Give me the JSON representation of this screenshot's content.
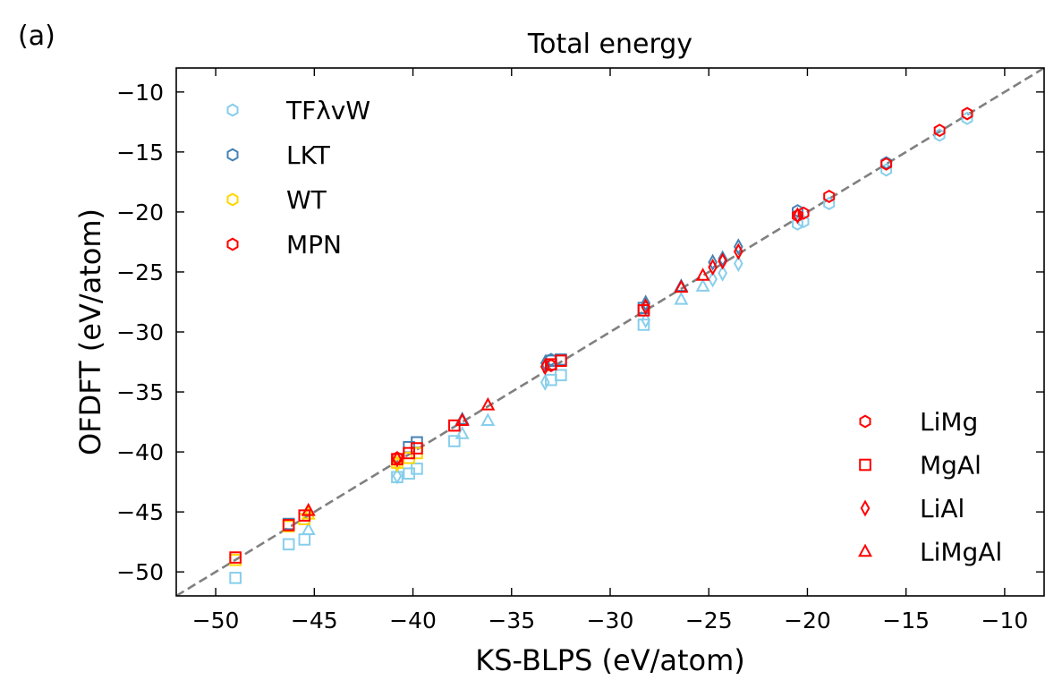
{
  "panel_label": "(a)",
  "chart_data": {
    "type": "scatter",
    "title": "Total energy",
    "xlabel": "KS-BLPS (eV/atom)",
    "ylabel": "OFDFT (eV/atom)",
    "xlim": [
      -52,
      -8
    ],
    "ylim": [
      -52,
      -8
    ],
    "xticks": [
      -50,
      -45,
      -40,
      -35,
      -30,
      -25,
      -20,
      -15,
      -10
    ],
    "yticks": [
      -50,
      -45,
      -40,
      -35,
      -30,
      -25,
      -20,
      -15,
      -10
    ],
    "tick_labels_x": [
      "−50",
      "−45",
      "−40",
      "−35",
      "−30",
      "−25",
      "−20",
      "−15",
      "−10"
    ],
    "tick_labels_y": [
      "−50",
      "−45",
      "−40",
      "−35",
      "−30",
      "−25",
      "−20",
      "−15",
      "−10"
    ],
    "reference_line": {
      "style": "dashed",
      "color": "#808080",
      "slope": 1,
      "intercept": 0
    },
    "legend_functionals": {
      "placement": "top-left",
      "entries": [
        {
          "label": "TFλvW",
          "color": "#87CEEB"
        },
        {
          "label": "LKT",
          "color": "#4682B4"
        },
        {
          "label": "WT",
          "color": "#FFD700"
        },
        {
          "label": "MPN",
          "color": "#FF0000"
        }
      ]
    },
    "legend_systems": {
      "placement": "bottom-right",
      "color": "#FF0000",
      "entries": [
        {
          "label": "LiMg",
          "marker": "hexagon"
        },
        {
          "label": "MgAl",
          "marker": "square"
        },
        {
          "label": "LiAl",
          "marker": "diamond"
        },
        {
          "label": "LiMgAl",
          "marker": "triangle"
        }
      ]
    },
    "series": [
      {
        "name": "TFλvW",
        "color": "#87CEEB",
        "points": [
          {
            "x": -11.9,
            "y": -12.2,
            "m": "hexagon"
          },
          {
            "x": -13.3,
            "y": -13.6,
            "m": "hexagon"
          },
          {
            "x": -16.0,
            "y": -16.5,
            "m": "hexagon"
          },
          {
            "x": -18.9,
            "y": -19.3,
            "m": "hexagon"
          },
          {
            "x": -20.2,
            "y": -20.8,
            "m": "hexagon"
          },
          {
            "x": -20.5,
            "y": -21.0,
            "m": "hexagon"
          },
          {
            "x": -49.0,
            "y": -50.5,
            "m": "square"
          },
          {
            "x": -46.3,
            "y": -47.7,
            "m": "square"
          },
          {
            "x": -45.5,
            "y": -47.3,
            "m": "square"
          },
          {
            "x": -40.8,
            "y": -42.1,
            "m": "square"
          },
          {
            "x": -40.2,
            "y": -41.8,
            "m": "square"
          },
          {
            "x": -39.8,
            "y": -41.4,
            "m": "square"
          },
          {
            "x": -37.9,
            "y": -39.1,
            "m": "square"
          },
          {
            "x": -33.0,
            "y": -34.0,
            "m": "square"
          },
          {
            "x": -32.5,
            "y": -33.6,
            "m": "square"
          },
          {
            "x": -28.3,
            "y": -29.4,
            "m": "square"
          },
          {
            "x": -40.8,
            "y": -42.0,
            "m": "diamond"
          },
          {
            "x": -33.3,
            "y": -34.2,
            "m": "diamond"
          },
          {
            "x": -28.2,
            "y": -29.0,
            "m": "diamond"
          },
          {
            "x": -24.8,
            "y": -25.6,
            "m": "diamond"
          },
          {
            "x": -24.3,
            "y": -25.1,
            "m": "diamond"
          },
          {
            "x": -23.5,
            "y": -24.3,
            "m": "diamond"
          },
          {
            "x": -45.3,
            "y": -46.5,
            "m": "triangle"
          },
          {
            "x": -37.5,
            "y": -38.5,
            "m": "triangle"
          },
          {
            "x": -36.2,
            "y": -37.4,
            "m": "triangle"
          },
          {
            "x": -26.4,
            "y": -27.3,
            "m": "triangle"
          },
          {
            "x": -25.3,
            "y": -26.2,
            "m": "triangle"
          }
        ]
      },
      {
        "name": "LKT",
        "color": "#4682B4",
        "points": [
          {
            "x": -11.9,
            "y": -11.8,
            "m": "hexagon"
          },
          {
            "x": -16.0,
            "y": -15.9,
            "m": "hexagon"
          },
          {
            "x": -20.5,
            "y": -19.9,
            "m": "hexagon"
          },
          {
            "x": -33.0,
            "y": -32.3,
            "m": "hexagon"
          },
          {
            "x": -46.3,
            "y": -46.0,
            "m": "square"
          },
          {
            "x": -40.2,
            "y": -39.6,
            "m": "square"
          },
          {
            "x": -39.8,
            "y": -39.2,
            "m": "square"
          },
          {
            "x": -33.0,
            "y": -32.4,
            "m": "square"
          },
          {
            "x": -32.5,
            "y": -32.3,
            "m": "square"
          },
          {
            "x": -28.3,
            "y": -28.0,
            "m": "square"
          },
          {
            "x": -33.3,
            "y": -32.6,
            "m": "diamond"
          },
          {
            "x": -28.2,
            "y": -27.6,
            "m": "diamond"
          },
          {
            "x": -24.8,
            "y": -24.2,
            "m": "diamond"
          },
          {
            "x": -24.3,
            "y": -23.9,
            "m": "diamond"
          },
          {
            "x": -23.5,
            "y": -22.9,
            "m": "diamond"
          },
          {
            "x": -37.5,
            "y": -37.3,
            "m": "triangle"
          },
          {
            "x": -26.4,
            "y": -26.2,
            "m": "triangle"
          }
        ]
      },
      {
        "name": "WT",
        "color": "#FFD700",
        "points": [
          {
            "x": -49.0,
            "y": -49.0,
            "m": "square"
          },
          {
            "x": -46.3,
            "y": -46.2,
            "m": "square"
          },
          {
            "x": -45.5,
            "y": -45.6,
            "m": "square"
          },
          {
            "x": -40.8,
            "y": -40.9,
            "m": "square"
          },
          {
            "x": -40.2,
            "y": -40.5,
            "m": "square"
          },
          {
            "x": -39.8,
            "y": -40.1,
            "m": "square"
          },
          {
            "x": -40.8,
            "y": -41.0,
            "m": "diamond"
          },
          {
            "x": -45.3,
            "y": -45.2,
            "m": "triangle"
          }
        ]
      },
      {
        "name": "MPN",
        "color": "#FF0000",
        "points": [
          {
            "x": -11.9,
            "y": -11.8,
            "m": "hexagon"
          },
          {
            "x": -13.3,
            "y": -13.2,
            "m": "hexagon"
          },
          {
            "x": -16.0,
            "y": -16.0,
            "m": "hexagon"
          },
          {
            "x": -18.9,
            "y": -18.7,
            "m": "hexagon"
          },
          {
            "x": -20.2,
            "y": -20.1,
            "m": "hexagon"
          },
          {
            "x": -20.5,
            "y": -20.3,
            "m": "hexagon"
          },
          {
            "x": -33.0,
            "y": -32.8,
            "m": "hexagon"
          },
          {
            "x": -40.8,
            "y": -40.5,
            "m": "hexagon"
          },
          {
            "x": -49.0,
            "y": -48.8,
            "m": "square"
          },
          {
            "x": -46.3,
            "y": -46.1,
            "m": "square"
          },
          {
            "x": -45.5,
            "y": -45.3,
            "m": "square"
          },
          {
            "x": -40.8,
            "y": -40.6,
            "m": "square"
          },
          {
            "x": -40.2,
            "y": -40.1,
            "m": "square"
          },
          {
            "x": -39.8,
            "y": -39.7,
            "m": "square"
          },
          {
            "x": -37.9,
            "y": -37.8,
            "m": "square"
          },
          {
            "x": -33.0,
            "y": -32.7,
            "m": "square"
          },
          {
            "x": -32.5,
            "y": -32.4,
            "m": "square"
          },
          {
            "x": -28.3,
            "y": -28.2,
            "m": "square"
          },
          {
            "x": -40.8,
            "y": -40.6,
            "m": "diamond"
          },
          {
            "x": -33.3,
            "y": -32.9,
            "m": "diamond"
          },
          {
            "x": -28.2,
            "y": -27.9,
            "m": "diamond"
          },
          {
            "x": -24.8,
            "y": -24.6,
            "m": "diamond"
          },
          {
            "x": -24.3,
            "y": -24.1,
            "m": "diamond"
          },
          {
            "x": -23.5,
            "y": -23.3,
            "m": "diamond"
          },
          {
            "x": -20.5,
            "y": -20.3,
            "m": "diamond"
          },
          {
            "x": -45.3,
            "y": -44.9,
            "m": "triangle"
          },
          {
            "x": -37.5,
            "y": -37.4,
            "m": "triangle"
          },
          {
            "x": -36.2,
            "y": -36.1,
            "m": "triangle"
          },
          {
            "x": -26.4,
            "y": -26.3,
            "m": "triangle"
          },
          {
            "x": -25.3,
            "y": -25.3,
            "m": "triangle"
          }
        ]
      }
    ]
  }
}
